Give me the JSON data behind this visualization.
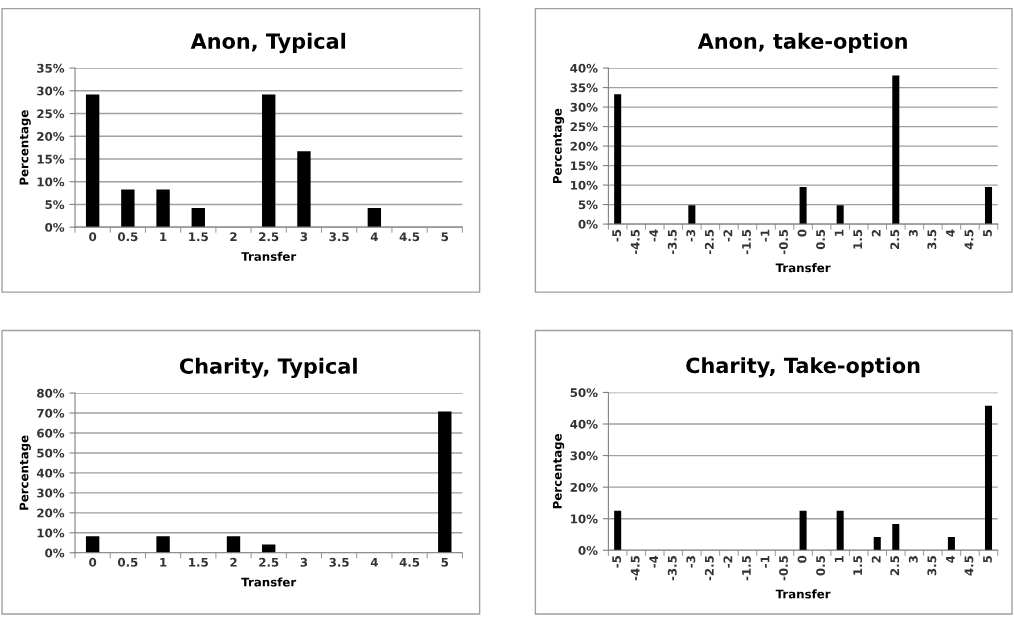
{
  "chart_data": [
    {
      "type": "bar",
      "title": "Anon, Typical",
      "xlabel": "Transfer",
      "ylabel": "Percentage",
      "categories": [
        "0",
        "0.5",
        "1",
        "1.5",
        "2",
        "2.5",
        "3",
        "3.5",
        "4",
        "4.5",
        "5"
      ],
      "series": [
        {
          "color": "#000000",
          "values": [
            29.2,
            8.3,
            8.3,
            4.2,
            0,
            29.2,
            16.7,
            0,
            4.2,
            0,
            0
          ]
        }
      ],
      "ylim": [
        0,
        35
      ],
      "yticks": [
        {
          "value": 0,
          "label": "0%"
        },
        {
          "value": 5,
          "label": "5%"
        },
        {
          "value": 10,
          "label": "10%"
        },
        {
          "value": 15,
          "label": "15%"
        },
        {
          "value": 20,
          "label": "20%"
        },
        {
          "value": 25,
          "label": "25%"
        },
        {
          "value": 30,
          "label": "30%"
        },
        {
          "value": 35,
          "label": "35%"
        }
      ],
      "grid": "y"
    },
    {
      "type": "bar",
      "title": "Anon, take-option",
      "xlabel": "Transfer",
      "ylabel": "Percentage",
      "categories": [
        "-5",
        "-4.5",
        "-4",
        "-3.5",
        "-3",
        "-2.5",
        "-2",
        "-1.5",
        "-1",
        "-0.5",
        "0",
        "0.5",
        "1",
        "1.5",
        "2",
        "2.5",
        "3",
        "3.5",
        "4",
        "4.5",
        "5"
      ],
      "series": [
        {
          "color": "#000000",
          "values": [
            33.3,
            0,
            0,
            0,
            4.8,
            0,
            0,
            0,
            0,
            0,
            9.5,
            0,
            4.8,
            0,
            0,
            38.1,
            0,
            0,
            0,
            0,
            9.5
          ]
        }
      ],
      "ylim": [
        0,
        40
      ],
      "yticks": [
        {
          "value": 0,
          "label": "0%"
        },
        {
          "value": 5,
          "label": "5%"
        },
        {
          "value": 10,
          "label": "10%"
        },
        {
          "value": 15,
          "label": "15%"
        },
        {
          "value": 20,
          "label": "20%"
        },
        {
          "value": 25,
          "label": "25%"
        },
        {
          "value": 30,
          "label": "30%"
        },
        {
          "value": 35,
          "label": "35%"
        },
        {
          "value": 40,
          "label": "40%"
        }
      ],
      "grid": "y"
    },
    {
      "type": "bar",
      "title": "Charity, Typical",
      "xlabel": "Transfer",
      "ylabel": "Percentage",
      "categories": [
        "0",
        "0.5",
        "1",
        "1.5",
        "2",
        "2.5",
        "3",
        "3.5",
        "4",
        "4.5",
        "5"
      ],
      "series": [
        {
          "color": "#000000",
          "values": [
            8.3,
            0,
            8.3,
            0,
            8.3,
            4.2,
            0,
            0,
            0,
            0,
            70.8
          ]
        }
      ],
      "ylim": [
        0,
        80
      ],
      "yticks": [
        {
          "value": 0,
          "label": "0%"
        },
        {
          "value": 10,
          "label": "10%"
        },
        {
          "value": 20,
          "label": "20%"
        },
        {
          "value": 30,
          "label": "30%"
        },
        {
          "value": 40,
          "label": "40%"
        },
        {
          "value": 50,
          "label": "50%"
        },
        {
          "value": 60,
          "label": "60%"
        },
        {
          "value": 70,
          "label": "70%"
        },
        {
          "value": 80,
          "label": "80%"
        }
      ],
      "grid": "y"
    },
    {
      "type": "bar",
      "title": "Charity, Take-option",
      "xlabel": "Transfer",
      "ylabel": "Percentage",
      "categories": [
        "-5",
        "-4.5",
        "-4",
        "-3.5",
        "-3",
        "-2.5",
        "-2",
        "-1.5",
        "-1",
        "-0.5",
        "0",
        "0.5",
        "1",
        "1.5",
        "2",
        "2.5",
        "3",
        "3.5",
        "4",
        "4.5",
        "5"
      ],
      "series": [
        {
          "color": "#000000",
          "values": [
            12.5,
            0,
            0,
            0,
            0,
            0,
            0,
            0,
            0,
            0,
            12.5,
            0,
            12.5,
            0,
            4.2,
            8.3,
            0,
            0,
            4.2,
            0,
            45.8
          ]
        }
      ],
      "ylim": [
        0,
        50
      ],
      "yticks": [
        {
          "value": 0,
          "label": "0%"
        },
        {
          "value": 10,
          "label": "10%"
        },
        {
          "value": 20,
          "label": "20%"
        },
        {
          "value": 30,
          "label": "30%"
        },
        {
          "value": 40,
          "label": "40%"
        },
        {
          "value": 50,
          "label": "50%"
        }
      ],
      "grid": "y"
    }
  ]
}
